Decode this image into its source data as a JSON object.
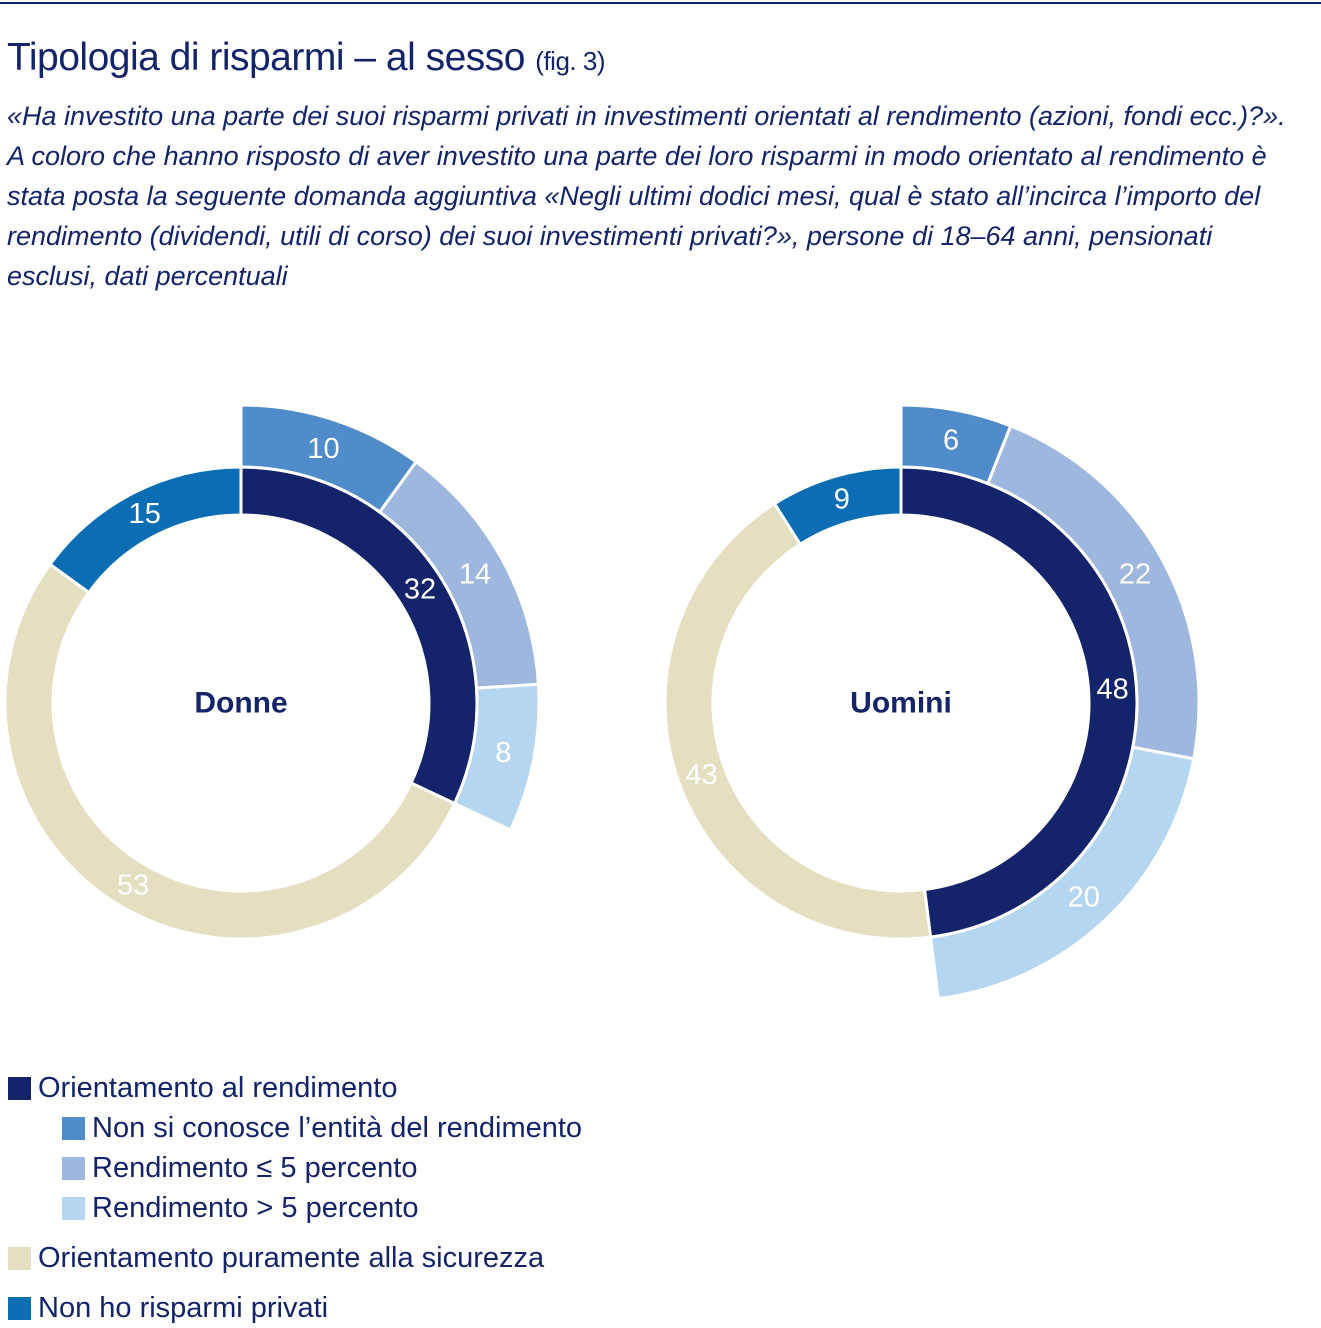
{
  "title": "Tipologia di risparmi – al sesso",
  "fig": "(fig. 3)",
  "subtitle": "«Ha investito una parte dei suoi risparmi privati in investimenti orientati al rendimento (azioni, fondi ecc.)?». A coloro che hanno risposto di aver investito una parte dei loro risparmi in modo orientato al rendimento è stata posta la seguente domanda aggiuntiva «Negli ultimi dodici mesi, qual è stato all’incirca l’importo del rendimento (dividendi, utili di corso) dei suoi investimenti privati?», persone di 18–64 anni, pensionati esclusi, dati percentuali",
  "colors": {
    "rend": "#13246a",
    "nonconosce": "#4f8cc9",
    "le5": "#9db7de",
    "gt5": "#b5d6f0",
    "sicurezza": "#e3dfc0",
    "norisp": "#0b6db4"
  },
  "legend": [
    {
      "key": "rend",
      "label": "Orientamento al rendimento",
      "level": 0
    },
    {
      "key": "nonconosce",
      "label": "Non si conosce l’entità del rendimento",
      "level": 1
    },
    {
      "key": "le5",
      "label": "Rendimento ≤ 5 percento",
      "level": 1
    },
    {
      "key": "gt5",
      "label": "Rendimento > 5 percento",
      "level": 1
    },
    {
      "key": "sicurezza",
      "label": "Orientamento puramente alla sicurezza",
      "level": 0
    },
    {
      "key": "norisp",
      "label": "Non ho risparmi privati",
      "level": 0
    }
  ],
  "chart_data": {
    "type": "pie",
    "variant": "nested donut",
    "charts": [
      {
        "name": "Donne",
        "inner": {
          "rend": 32,
          "sicurezza": 53,
          "norisp": 15
        },
        "outer": {
          "nonconosce": 10,
          "le5": 14,
          "gt5": 8
        }
      },
      {
        "name": "Uomini",
        "inner": {
          "rend": 48,
          "sicurezza": 43,
          "norisp": 9
        },
        "outer": {
          "nonconosce": 6,
          "le5": 22,
          "gt5": 20
        }
      }
    ]
  }
}
